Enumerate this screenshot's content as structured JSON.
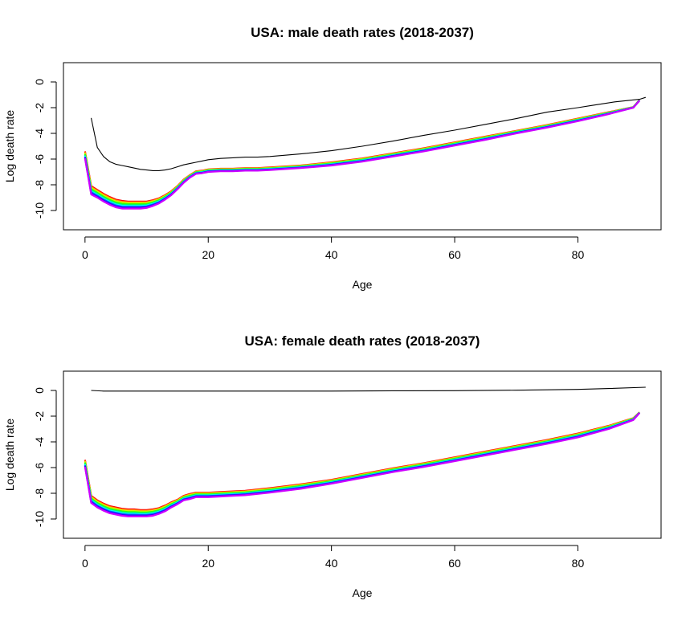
{
  "chart_data": [
    {
      "type": "line",
      "title": "USA: male death rates  (2018-2037)",
      "xlabel": "Age",
      "ylabel": "Log death rate",
      "xlim": [
        -3.5,
        93.5
      ],
      "ylim": [
        -11.5,
        1.5
      ],
      "xticks": [
        "0",
        "20",
        "40",
        "60",
        "80"
      ],
      "yticks": [
        "0",
        "-2",
        "-4",
        "-6",
        "-8",
        "-10"
      ],
      "grid": false,
      "legend": "none",
      "series_colors": [
        "#ff0000",
        "#ff9900",
        "#ccff00",
        "#33ff00",
        "#00ff66",
        "#00ffff",
        "#0066ff",
        "#3300ff",
        "#cc00ff"
      ],
      "reference_line": {
        "color": "#000000",
        "x": [
          1,
          2,
          3,
          4,
          5,
          6,
          7,
          8,
          9,
          10,
          11,
          12,
          13,
          14,
          15,
          16,
          17,
          18,
          19,
          20,
          22,
          24,
          26,
          28,
          30,
          35,
          40,
          45,
          50,
          55,
          60,
          65,
          70,
          75,
          80,
          82,
          84,
          86,
          88,
          90,
          91
        ],
        "y": [
          -2.8,
          -5.1,
          -5.8,
          -6.2,
          -6.4,
          -6.5,
          -6.6,
          -6.7,
          -6.8,
          -6.85,
          -6.9,
          -6.9,
          -6.85,
          -6.75,
          -6.6,
          -6.45,
          -6.35,
          -6.25,
          -6.15,
          -6.05,
          -5.95,
          -5.9,
          -5.85,
          -5.85,
          -5.8,
          -5.6,
          -5.35,
          -5.0,
          -4.6,
          -4.15,
          -3.75,
          -3.3,
          -2.85,
          -2.35,
          -2.0,
          -1.85,
          -1.7,
          -1.55,
          -1.45,
          -1.35,
          -1.2
        ]
      },
      "forecast_band": {
        "x": [
          0,
          1,
          2,
          3,
          4,
          5,
          6,
          7,
          8,
          9,
          10,
          11,
          12,
          13,
          14,
          15,
          16,
          17,
          18,
          19,
          20,
          22,
          24,
          26,
          28,
          30,
          35,
          40,
          45,
          50,
          55,
          60,
          65,
          70,
          75,
          80,
          85,
          89,
          90
        ],
        "first_year": [
          -5.4,
          -8.1,
          -8.4,
          -8.7,
          -8.95,
          -9.15,
          -9.25,
          -9.3,
          -9.3,
          -9.3,
          -9.3,
          -9.2,
          -9.05,
          -8.8,
          -8.5,
          -8.1,
          -7.6,
          -7.25,
          -6.95,
          -6.9,
          -6.8,
          -6.75,
          -6.75,
          -6.7,
          -6.7,
          -6.65,
          -6.5,
          -6.25,
          -5.95,
          -5.55,
          -5.15,
          -4.7,
          -4.25,
          -3.8,
          -3.35,
          -2.85,
          -2.35,
          -1.95,
          -1.4
        ],
        "last_year": [
          -5.95,
          -8.75,
          -9.0,
          -9.3,
          -9.55,
          -9.75,
          -9.85,
          -9.85,
          -9.85,
          -9.85,
          -9.8,
          -9.65,
          -9.45,
          -9.15,
          -8.8,
          -8.35,
          -7.85,
          -7.45,
          -7.15,
          -7.1,
          -7.0,
          -6.95,
          -6.95,
          -6.9,
          -6.9,
          -6.85,
          -6.7,
          -6.5,
          -6.2,
          -5.8,
          -5.4,
          -4.95,
          -4.5,
          -4.0,
          -3.55,
          -3.05,
          -2.5,
          -2.0,
          -1.45
        ]
      }
    },
    {
      "type": "line",
      "title": "USA: female death rates  (2018-2037)",
      "xlabel": "Age",
      "ylabel": "Log death rate",
      "xlim": [
        -3.5,
        93.5
      ],
      "ylim": [
        -11.5,
        1.5
      ],
      "xticks": [
        "0",
        "20",
        "40",
        "60",
        "80"
      ],
      "yticks": [
        "0",
        "-2",
        "-4",
        "-6",
        "-8",
        "-10"
      ],
      "grid": false,
      "legend": "none",
      "series_colors": [
        "#ff0000",
        "#ff9900",
        "#ccff00",
        "#33ff00",
        "#00ff66",
        "#00ffff",
        "#0066ff",
        "#3300ff",
        "#cc00ff"
      ],
      "reference_line": {
        "color": "#000000",
        "x": [
          1,
          3,
          10,
          20,
          30,
          40,
          50,
          60,
          70,
          80,
          85,
          91
        ],
        "y": [
          0.0,
          -0.05,
          -0.05,
          -0.05,
          -0.05,
          -0.05,
          -0.03,
          -0.02,
          0.02,
          0.08,
          0.15,
          0.25
        ]
      },
      "forecast_band": {
        "x": [
          0,
          1,
          2,
          3,
          4,
          5,
          6,
          7,
          8,
          9,
          10,
          11,
          12,
          13,
          14,
          15,
          16,
          17,
          18,
          19,
          20,
          22,
          24,
          26,
          28,
          30,
          35,
          40,
          45,
          50,
          55,
          60,
          65,
          70,
          75,
          80,
          85,
          89,
          90
        ],
        "first_year": [
          -5.4,
          -8.2,
          -8.55,
          -8.8,
          -9.0,
          -9.1,
          -9.2,
          -9.25,
          -9.25,
          -9.3,
          -9.3,
          -9.25,
          -9.15,
          -8.95,
          -8.7,
          -8.5,
          -8.2,
          -8.05,
          -7.95,
          -7.95,
          -7.95,
          -7.9,
          -7.85,
          -7.8,
          -7.7,
          -7.6,
          -7.3,
          -6.95,
          -6.5,
          -6.05,
          -5.65,
          -5.2,
          -4.75,
          -4.3,
          -3.85,
          -3.35,
          -2.75,
          -2.15,
          -1.7
        ],
        "last_year": [
          -5.95,
          -8.75,
          -9.1,
          -9.35,
          -9.55,
          -9.65,
          -9.75,
          -9.8,
          -9.8,
          -9.8,
          -9.8,
          -9.75,
          -9.6,
          -9.4,
          -9.1,
          -8.85,
          -8.55,
          -8.45,
          -8.3,
          -8.3,
          -8.3,
          -8.25,
          -8.2,
          -8.15,
          -8.05,
          -7.95,
          -7.65,
          -7.25,
          -6.8,
          -6.35,
          -5.95,
          -5.5,
          -5.05,
          -4.6,
          -4.15,
          -3.65,
          -3.0,
          -2.3,
          -1.75
        ]
      }
    }
  ]
}
